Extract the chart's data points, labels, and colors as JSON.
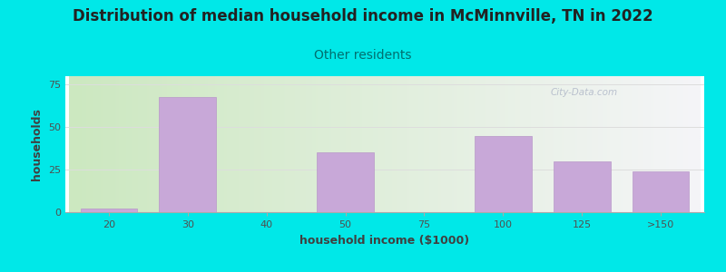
{
  "title": "Distribution of median household income in McMinnville, TN in 2022",
  "subtitle": "Other residents",
  "xlabel": "household income ($1000)",
  "ylabel": "households",
  "bar_labels": [
    "20",
    "30",
    "40",
    "50",
    "75",
    "100",
    "125",
    ">150"
  ],
  "bar_heights": [
    2,
    68,
    0,
    35,
    0,
    45,
    30,
    24
  ],
  "bar_color": "#c8a8d8",
  "bar_edge_color": "#b898c8",
  "background_color": "#00e8e8",
  "plot_bg_left": "#cce8c0",
  "plot_bg_right": "#f5f5f8",
  "title_color": "#222222",
  "subtitle_color": "#007070",
  "axis_label_color": "#404040",
  "tick_color": "#505050",
  "grid_color": "#dddddd",
  "ylim": [
    0,
    80
  ],
  "yticks": [
    0,
    25,
    50,
    75
  ],
  "watermark": "City-Data.com",
  "title_fontsize": 12,
  "subtitle_fontsize": 10,
  "label_fontsize": 9,
  "tick_fontsize": 8
}
